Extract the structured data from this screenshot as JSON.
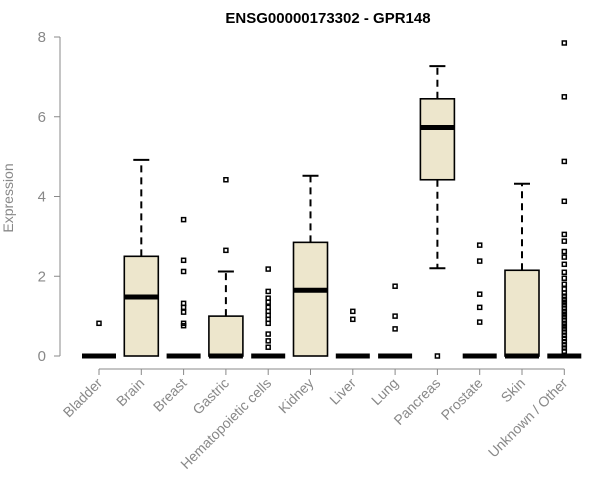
{
  "chart_data": {
    "type": "box",
    "title": "ENSG00000173302 - GPR148",
    "ylabel": "Expression",
    "xlabel": "",
    "ylim": [
      0,
      8
    ],
    "yticks": [
      0,
      2,
      4,
      6,
      8
    ],
    "colors": {
      "box_fill": "#ede6cc",
      "stroke": "#000000",
      "axis": "#888888"
    },
    "categories": [
      "Bladder",
      "Brain",
      "Breast",
      "Gastric",
      "Hematopoietic cells",
      "Kidney",
      "Liver",
      "Lung",
      "Pancreas",
      "Prostate",
      "Skin",
      "Unknown / Other"
    ],
    "boxes": [
      {
        "category": "Bladder",
        "q1": 0,
        "median": 0,
        "q3": 0,
        "whisker_low": 0,
        "whisker_high": 0,
        "outliers": [
          0.82
        ]
      },
      {
        "category": "Brain",
        "q1": 0,
        "median": 1.48,
        "q3": 2.5,
        "whisker_low": 0,
        "whisker_high": 4.92,
        "outliers": []
      },
      {
        "category": "Breast",
        "q1": 0,
        "median": 0,
        "q3": 0,
        "whisker_low": 0,
        "whisker_high": 0,
        "outliers": [
          3.42,
          2.4,
          2.12,
          1.32,
          1.22,
          1.1,
          0.82,
          0.76
        ]
      },
      {
        "category": "Gastric",
        "q1": 0,
        "median": 0,
        "q3": 1.0,
        "whisker_low": 0,
        "whisker_high": 2.12,
        "outliers": [
          4.42,
          2.65
        ]
      },
      {
        "category": "Hematopoietic cells",
        "q1": 0,
        "median": 0,
        "q3": 0,
        "whisker_low": 0,
        "whisker_high": 0,
        "outliers": [
          2.18,
          1.62,
          1.45,
          1.35,
          1.22,
          1.12,
          1.02,
          0.92,
          0.82,
          0.55,
          0.38,
          0.22
        ]
      },
      {
        "category": "Kidney",
        "q1": 0,
        "median": 1.65,
        "q3": 2.85,
        "whisker_low": 0,
        "whisker_high": 4.52,
        "outliers": []
      },
      {
        "category": "Liver",
        "q1": 0,
        "median": 0,
        "q3": 0,
        "whisker_low": 0,
        "whisker_high": 0,
        "outliers": [
          1.12,
          0.92
        ]
      },
      {
        "category": "Lung",
        "q1": 0,
        "median": 0,
        "q3": 0,
        "whisker_low": 0,
        "whisker_high": 0,
        "outliers": [
          1.75,
          1.0,
          0.68
        ]
      },
      {
        "category": "Pancreas",
        "q1": 4.42,
        "median": 5.73,
        "q3": 6.45,
        "whisker_low": 2.2,
        "whisker_high": 7.27,
        "outliers": [
          0
        ]
      },
      {
        "category": "Prostate",
        "q1": 0,
        "median": 0,
        "q3": 0,
        "whisker_low": 0,
        "whisker_high": 0,
        "outliers": [
          2.78,
          2.38,
          1.55,
          1.22,
          0.85
        ]
      },
      {
        "category": "Skin",
        "q1": 0,
        "median": 0,
        "q3": 2.15,
        "whisker_low": 0,
        "whisker_high": 4.32,
        "outliers": []
      },
      {
        "category": "Unknown / Other",
        "q1": 0,
        "median": 0,
        "q3": 0,
        "whisker_low": 0,
        "whisker_high": 0,
        "outliers": [
          7.85,
          6.5,
          4.88,
          3.88,
          3.05,
          2.88,
          2.62,
          2.48,
          2.3,
          2.1,
          1.95,
          1.8,
          1.68,
          1.58,
          1.5,
          1.42,
          1.35,
          1.28,
          1.2,
          1.12,
          1.05,
          0.98,
          0.9,
          0.82,
          0.75,
          0.68,
          0.6,
          0.52,
          0.44,
          0.36,
          0.28,
          0.2,
          0.12
        ]
      }
    ]
  }
}
